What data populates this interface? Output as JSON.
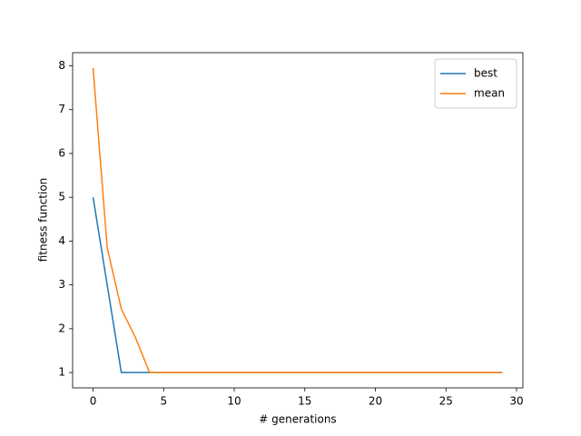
{
  "chart_data": {
    "type": "line",
    "x_label": "# generations",
    "y_label": "fitness function",
    "x": [
      0,
      1,
      2,
      3,
      4,
      5,
      6,
      7,
      8,
      9,
      10,
      11,
      12,
      13,
      14,
      15,
      16,
      17,
      18,
      19,
      20,
      21,
      22,
      23,
      24,
      25,
      26,
      27,
      28,
      29
    ],
    "series": [
      {
        "name": "best",
        "color": "#1f77b4",
        "values": [
          5,
          3,
          1,
          1,
          1,
          1,
          1,
          1,
          1,
          1,
          1,
          1,
          1,
          1,
          1,
          1,
          1,
          1,
          1,
          1,
          1,
          1,
          1,
          1,
          1,
          1,
          1,
          1,
          1,
          1
        ]
      },
      {
        "name": "mean",
        "color": "#ff7f0e",
        "values": [
          7.95,
          3.85,
          2.45,
          1.8,
          1,
          1,
          1,
          1,
          1,
          1,
          1,
          1,
          1,
          1,
          1,
          1,
          1,
          1,
          1,
          1,
          1,
          1,
          1,
          1,
          1,
          1,
          1,
          1,
          1,
          1
        ]
      }
    ],
    "xlim": [
      -1.45,
      30.45
    ],
    "xticks": [
      0,
      5,
      10,
      15,
      20,
      25,
      30
    ],
    "ylim": [
      0.65,
      8.3
    ],
    "yticks": [
      1,
      2,
      3,
      4,
      5,
      6,
      7,
      8
    ],
    "grid": false,
    "legend": "upper right"
  }
}
